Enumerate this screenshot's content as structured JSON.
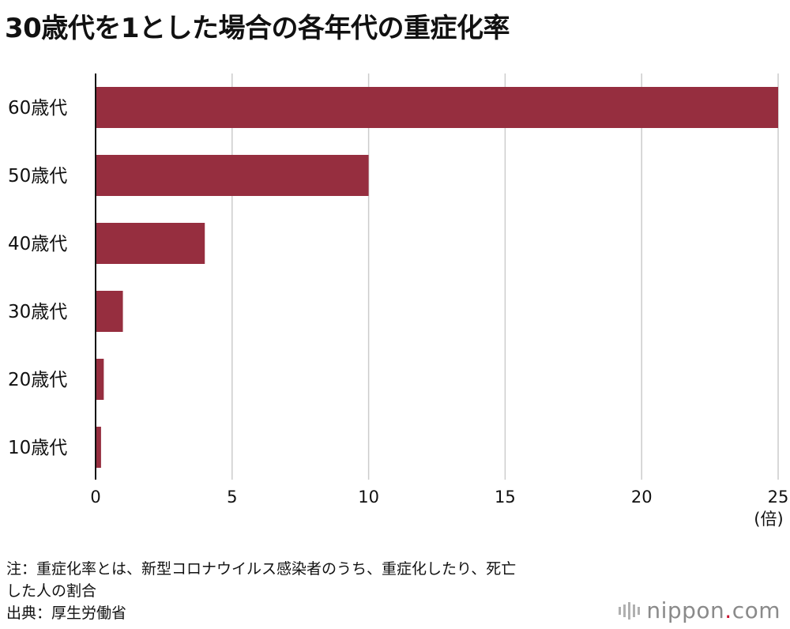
{
  "title": "30歳代を1とした場合の各年代の重症化率",
  "chart_data": {
    "type": "bar",
    "orientation": "horizontal",
    "categories": [
      "60歳代",
      "50歳代",
      "40歳代",
      "30歳代",
      "20歳代",
      "10歳代"
    ],
    "values": [
      25,
      10,
      4,
      1,
      0.3,
      0.2
    ],
    "xlim": [
      0,
      25
    ],
    "x_ticks": [
      0,
      5,
      10,
      15,
      20,
      25
    ],
    "unit_label": "(倍)",
    "bar_color": "#962e3f",
    "grid": "vertical",
    "grid_color": "#cccccc",
    "legend": "none"
  },
  "notes": {
    "line1": "注：重症化率とは、新型コロナウイルス感染者のうち、重症化したり、死亡",
    "line2": "した人の割合",
    "source": "出典：厚生労働省"
  },
  "logo": {
    "text_main": "nippon",
    "text_dot": ".",
    "text_tld": "com"
  }
}
